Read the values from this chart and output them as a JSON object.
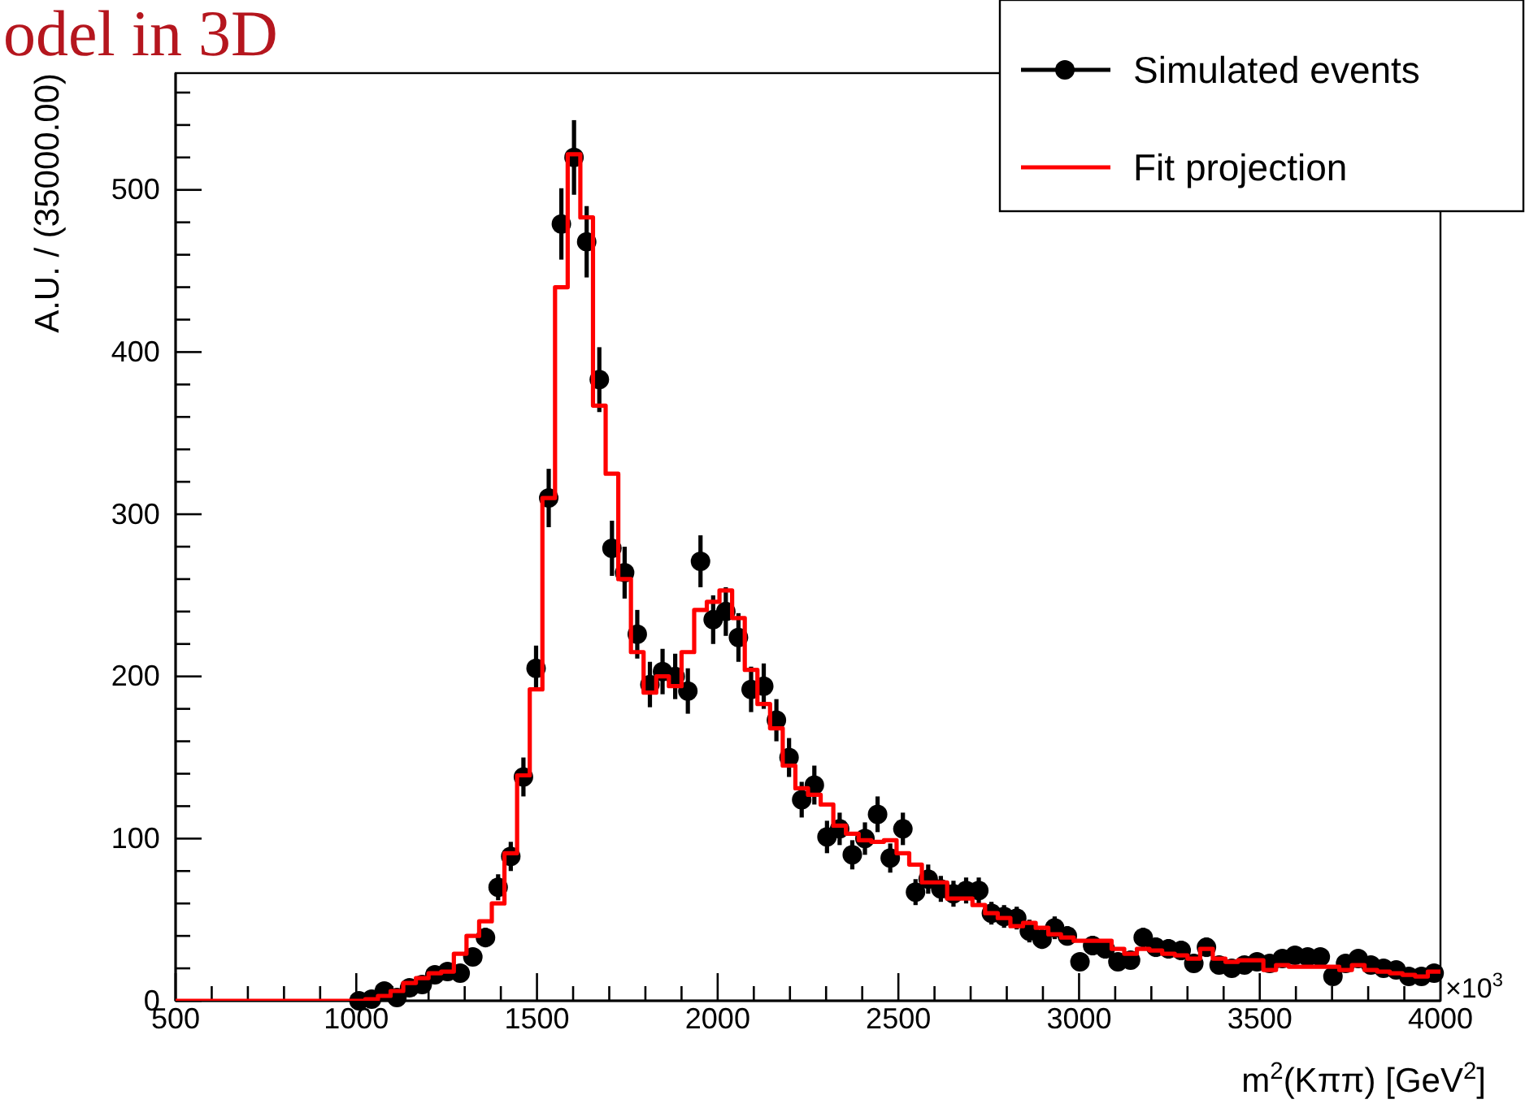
{
  "chart_data": {
    "type": "scatter",
    "title": "odel in 3D",
    "xlabel": "m$^{2}$(Kππ) [GeV$^{2}$]",
    "ylabel": "A.U. / (35000.00)",
    "annotations": [
      "×10$^{3}$"
    ],
    "xlim": [
      500,
      4000
    ],
    "ylim": [
      0,
      572
    ],
    "xticks": [
      500,
      {
        "value": 600,
        "label": null
      },
      {
        "value": 700,
        "label": null
      },
      {
        "value": 800,
        "label": null
      },
      {
        "value": 900,
        "label": null
      },
      1000,
      {
        "value": 1100,
        "label": null
      },
      {
        "value": 1200,
        "label": null
      },
      {
        "value": 1300,
        "label": null
      },
      {
        "value": 1400,
        "label": null
      },
      1500,
      {
        "value": 1600,
        "label": null
      },
      {
        "value": 1700,
        "label": null
      },
      {
        "value": 1800,
        "label": null
      },
      {
        "value": 1900,
        "label": null
      },
      2000,
      {
        "value": 2100,
        "label": null
      },
      {
        "value": 2200,
        "label": null
      },
      {
        "value": 2300,
        "label": null
      },
      {
        "value": 2400,
        "label": null
      },
      2500,
      {
        "value": 2600,
        "label": null
      },
      {
        "value": 2700,
        "label": null
      },
      {
        "value": 2800,
        "label": null
      },
      {
        "value": 2900,
        "label": null
      },
      3000,
      {
        "value": 3100,
        "label": null
      },
      {
        "value": 3200,
        "label": null
      },
      {
        "value": 3300,
        "label": null
      },
      {
        "value": 3400,
        "label": null
      },
      3500,
      {
        "value": 3600,
        "label": null
      },
      {
        "value": 3700,
        "label": null
      },
      {
        "value": 3800,
        "label": null
      },
      {
        "value": 3900,
        "label": null
      },
      4000
    ],
    "yticks": [
      0,
      {
        "value": 20,
        "label": null
      },
      {
        "value": 40,
        "label": null
      },
      {
        "value": 60,
        "label": null
      },
      {
        "value": 80,
        "label": null
      },
      100,
      {
        "value": 120,
        "label": null
      },
      {
        "value": 140,
        "label": null
      },
      {
        "value": 160,
        "label": null
      },
      {
        "value": 180,
        "label": null
      },
      200,
      {
        "value": 220,
        "label": null
      },
      {
        "value": 240,
        "label": null
      },
      {
        "value": 260,
        "label": null
      },
      {
        "value": 280,
        "label": null
      },
      300,
      {
        "value": 320,
        "label": null
      },
      {
        "value": 340,
        "label": null
      },
      {
        "value": 360,
        "label": null
      },
      {
        "value": 380,
        "label": null
      },
      400,
      {
        "value": 420,
        "label": null
      },
      {
        "value": 440,
        "label": null
      },
      {
        "value": 460,
        "label": null
      },
      {
        "value": 480,
        "label": null
      },
      500,
      {
        "value": 520,
        "label": null
      },
      {
        "value": 540,
        "label": null
      },
      {
        "value": 560,
        "label": null
      }
    ],
    "grid": false,
    "legend": "top right",
    "series": [
      {
        "name": "Simulated events",
        "marker": "circle",
        "color": "#000000",
        "x": [
          1007.5,
          1042.5,
          1077.5,
          1112.5,
          1147.5,
          1182.5,
          1217.5,
          1252.5,
          1287.5,
          1322.5,
          1357.5,
          1392.5,
          1427.5,
          1462.5,
          1497.5,
          1532.5,
          1567.5,
          1602.5,
          1637.5,
          1672.5,
          1707.5,
          1742.5,
          1777.5,
          1812.5,
          1847.5,
          1882.5,
          1917.5,
          1952.5,
          1987.5,
          2022.5,
          2057.5,
          2092.5,
          2127.5,
          2162.5,
          2197.5,
          2232.5,
          2267.5,
          2302.5,
          2337.5,
          2372.5,
          2407.5,
          2442.5,
          2477.5,
          2512.5,
          2547.5,
          2582.5,
          2617.5,
          2652.5,
          2687.5,
          2722.5,
          2757.5,
          2792.5,
          2827.5,
          2862.5,
          2897.5,
          2932.5,
          2967.5,
          3002.5,
          3037.5,
          3072.5,
          3107.5,
          3142.5,
          3177.5,
          3212.5,
          3247.5,
          3282.5,
          3317.5,
          3352.5,
          3387.5,
          3422.5,
          3457.5,
          3492.5,
          3527.5,
          3562.5,
          3597.5,
          3632.5,
          3667.5,
          3702.5,
          3737.5,
          3772.5,
          3807.5,
          3842.5,
          3877.5,
          3912.5,
          3947.5,
          3982.5
        ],
        "values": [
          0,
          1,
          6,
          2,
          8,
          10,
          16,
          18,
          17,
          27,
          39,
          70,
          89,
          138,
          205,
          310,
          479,
          520,
          468,
          383,
          279,
          264,
          226,
          195,
          203,
          200,
          191,
          271,
          235,
          240,
          224,
          192,
          194,
          173,
          150,
          124,
          133,
          101,
          106,
          90,
          100,
          115,
          88,
          106,
          67,
          75,
          69,
          66,
          68,
          68,
          54,
          52,
          51,
          43,
          38,
          45,
          40,
          24,
          34,
          32,
          24,
          25,
          39,
          33,
          32,
          31,
          23,
          33,
          22,
          20,
          22,
          24,
          23,
          26,
          28,
          27,
          27,
          15,
          23,
          26,
          22,
          20,
          19,
          15,
          15,
          17
        ],
        "errors": [
          0,
          1,
          2,
          1,
          3,
          3,
          4,
          4,
          4,
          5,
          6,
          8,
          9,
          12,
          14,
          18,
          22,
          23,
          22,
          20,
          17,
          16,
          15,
          14,
          14,
          14,
          14,
          16,
          15,
          15,
          15,
          14,
          14,
          13,
          12,
          11,
          12,
          10,
          10,
          9,
          10,
          11,
          9,
          10,
          8,
          9,
          8,
          8,
          8,
          8,
          7,
          7,
          7,
          7,
          6,
          7,
          6,
          5,
          6,
          6,
          5,
          5,
          6,
          6,
          6,
          6,
          5,
          6,
          5,
          4,
          5,
          5,
          5,
          5,
          5,
          5,
          5,
          4,
          5,
          5,
          5,
          4,
          4,
          4,
          4,
          4
        ]
      },
      {
        "name": "Fit projection",
        "type": "step",
        "color": "#ff0000",
        "x": [
          500,
          535,
          570,
          605,
          640,
          675,
          710,
          745,
          780,
          815,
          850,
          885,
          920,
          955,
          990,
          1025,
          1060,
          1095,
          1130,
          1165,
          1200,
          1235,
          1270,
          1305,
          1340,
          1375,
          1410,
          1445,
          1480,
          1515,
          1550,
          1585,
          1620,
          1655,
          1690,
          1725,
          1760,
          1795,
          1830,
          1865,
          1900,
          1935,
          1970,
          2005,
          2040,
          2075,
          2110,
          2145,
          2180,
          2215,
          2250,
          2285,
          2320,
          2355,
          2390,
          2425,
          2460,
          2495,
          2530,
          2565,
          2600,
          2635,
          2670,
          2705,
          2740,
          2775,
          2810,
          2845,
          2880,
          2915,
          2950,
          2985,
          3020,
          3055,
          3090,
          3125,
          3160,
          3195,
          3230,
          3265,
          3300,
          3335,
          3370,
          3405,
          3440,
          3475,
          3510,
          3545,
          3580,
          3615,
          3650,
          3685,
          3720,
          3755,
          3790,
          3825,
          3860,
          3895,
          3930,
          3965,
          4000
        ],
        "values": [
          0,
          0,
          0,
          0,
          0,
          0,
          0,
          0,
          0,
          0,
          0,
          0,
          0,
          0,
          0,
          1,
          3,
          6,
          11,
          14,
          17,
          18,
          29,
          40,
          49,
          60,
          91,
          139,
          192,
          310,
          440,
          522,
          483,
          367,
          325,
          260,
          215,
          190,
          200,
          194,
          215,
          241,
          246,
          253,
          236,
          204,
          183,
          168,
          145,
          131,
          127,
          121,
          108,
          103,
          99,
          98,
          99,
          91,
          84,
          73,
          73,
          63,
          63,
          59,
          54,
          51,
          46,
          48,
          45,
          41,
          39,
          37,
          37,
          37,
          32,
          29,
          32,
          31,
          29,
          28,
          26,
          32,
          26,
          24,
          25,
          25,
          19,
          22,
          21,
          21,
          21,
          21,
          19,
          22,
          19,
          18,
          17,
          16,
          15,
          18,
          18
        ]
      }
    ]
  }
}
